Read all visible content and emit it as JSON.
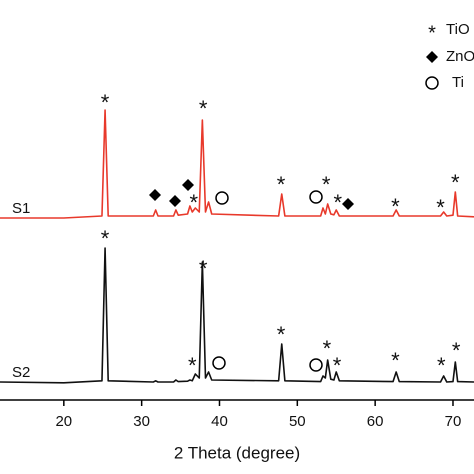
{
  "chart_data": {
    "type": "line",
    "xlabel": "2 Theta (degree)",
    "xlim": [
      11.8,
      72.7
    ],
    "ylim": [
      0,
      100
    ],
    "xticks": [
      20,
      30,
      40,
      50,
      60,
      70
    ],
    "x": [
      11.8,
      20,
      24.9,
      25.3,
      25.7,
      31.5,
      31.8,
      32.1,
      34.1,
      34.4,
      34.7,
      35.9,
      36.2,
      36.5,
      36.9,
      37.4,
      37.8,
      38.2,
      38.6,
      39.0,
      47.6,
      48.0,
      48.4,
      53.0,
      53.3,
      53.6,
      53.9,
      54.3,
      54.7,
      55.0,
      55.4,
      62.3,
      62.7,
      63.1,
      68.4,
      68.8,
      69.2,
      70.0,
      70.3,
      70.6,
      72.7
    ],
    "series": [
      {
        "name": "S1",
        "color": "#e8392b",
        "values": [
          45.5,
          45.5,
          46,
          72.5,
          46,
          46,
          47.5,
          46,
          46,
          47.5,
          46.2,
          46.5,
          48.5,
          47,
          48,
          47,
          70,
          47,
          49.5,
          46.5,
          46,
          51.5,
          46,
          46,
          48,
          46.5,
          49,
          46.5,
          46.3,
          47.5,
          46,
          46,
          47.5,
          46,
          46,
          47,
          46,
          46.2,
          52,
          46,
          45.8
        ]
      },
      {
        "name": "S2",
        "color": "#111111",
        "values": [
          4.5,
          4.3,
          4.8,
          38,
          4.8,
          4.5,
          4.8,
          4.5,
          4.5,
          5,
          4.6,
          4.7,
          5,
          4.8,
          6.5,
          5.5,
          34.5,
          5.5,
          7,
          5,
          4.8,
          14,
          4.8,
          4.6,
          6,
          5.5,
          10,
          5.2,
          5,
          7,
          4.8,
          4.6,
          7,
          4.6,
          4.5,
          6,
          4.5,
          4.6,
          9.5,
          4.6,
          4.5
        ]
      }
    ],
    "legend": [
      "TiO",
      "ZnO",
      "Ti"
    ],
    "annotations": [
      {
        "text": "*",
        "x": 25.3,
        "y": 75
      },
      {
        "text": "*",
        "x": 37.9,
        "y": 73.5
      },
      {
        "text": "*",
        "x": 36.7,
        "y": 50
      },
      {
        "text": "*",
        "x": 47.9,
        "y": 54.5
      },
      {
        "text": "*",
        "x": 53.7,
        "y": 54.5
      },
      {
        "text": "*",
        "x": 55.2,
        "y": 50
      },
      {
        "text": "*",
        "x": 62.6,
        "y": 49
      },
      {
        "text": "*",
        "x": 68.4,
        "y": 48.75
      },
      {
        "text": "*",
        "x": 70.3,
        "y": 55
      },
      {
        "text": "*",
        "x": 25.3,
        "y": 41
      },
      {
        "text": "*",
        "x": 37.9,
        "y": 33.5
      },
      {
        "text": "*",
        "x": 36.5,
        "y": 9.25
      },
      {
        "text": "*",
        "x": 47.9,
        "y": 17
      },
      {
        "text": "*",
        "x": 53.8,
        "y": 13.5
      },
      {
        "text": "*",
        "x": 55.1,
        "y": 9.25
      },
      {
        "text": "*",
        "x": 62.6,
        "y": 10.5
      },
      {
        "text": "*",
        "x": 68.5,
        "y": 9.25
      },
      {
        "text": "*",
        "x": 70.4,
        "y": 13
      }
    ]
  }
}
